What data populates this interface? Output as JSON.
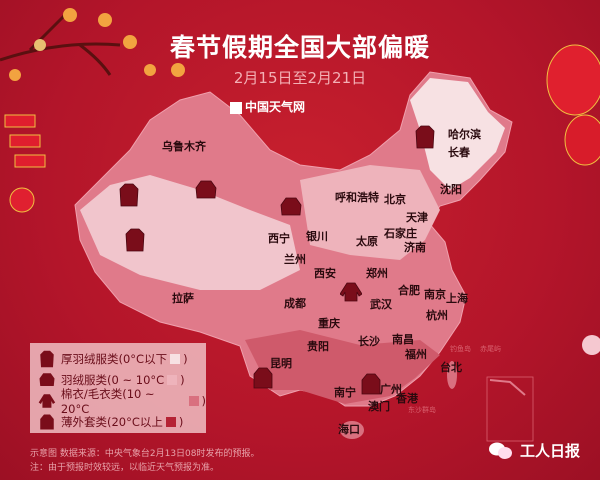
{
  "header": {
    "title": "春节假期全国大部偏暖",
    "subtitle": "2月15日至2月21日",
    "brand": "中国天气网",
    "brand_logo": "天气"
  },
  "colors": {
    "background": "#b3152a",
    "thick_down": "#f7e1e3",
    "down": "#eeb3bb",
    "cotton": "#d9707f",
    "light": "#b52234",
    "map_base": "#e07a8a"
  },
  "cities": [
    {
      "name": "乌鲁木齐"
    },
    {
      "name": "哈尔滨"
    },
    {
      "name": "长春"
    },
    {
      "name": "沈阳"
    },
    {
      "name": "呼和浩特"
    },
    {
      "name": "北京"
    },
    {
      "name": "天津"
    },
    {
      "name": "石家庄"
    },
    {
      "name": "济南"
    },
    {
      "name": "西宁"
    },
    {
      "name": "银川"
    },
    {
      "name": "太原"
    },
    {
      "name": "兰州"
    },
    {
      "name": "西安"
    },
    {
      "name": "郑州"
    },
    {
      "name": "合肥"
    },
    {
      "name": "南京"
    },
    {
      "name": "上海"
    },
    {
      "name": "武汉"
    },
    {
      "name": "杭州"
    },
    {
      "name": "拉萨"
    },
    {
      "name": "成都"
    },
    {
      "name": "重庆"
    },
    {
      "name": "贵阳"
    },
    {
      "name": "长沙"
    },
    {
      "name": "南昌"
    },
    {
      "name": "福州"
    },
    {
      "name": "昆明"
    },
    {
      "name": "南宁"
    },
    {
      "name": "广州"
    },
    {
      "name": "香港"
    },
    {
      "name": "澳门"
    },
    {
      "name": "海口"
    },
    {
      "name": "台北"
    }
  ],
  "islands": [
    "钓鱼岛",
    "赤尾屿",
    "东沙群岛"
  ],
  "legend": [
    {
      "label": "厚羽绒服类(0°C以下",
      "close": ")",
      "icon": "long-coat-icon",
      "color": "#f7e1e3"
    },
    {
      "label": "羽绒服类(0 ~ 10°C",
      "close": ")",
      "icon": "down-jacket-icon",
      "color": "#eeb3bb"
    },
    {
      "label": "棉衣/毛衣类(10 ~ 20°C",
      "close": ")",
      "icon": "sweater-icon",
      "color": "#d9707f"
    },
    {
      "label": "薄外套类(20°C以上",
      "close": ")",
      "icon": "light-jacket-icon",
      "color": "#b52234"
    }
  ],
  "notes": {
    "source": "示意图   数据来源：中央气象台2月13日08时发布的预报。",
    "disclaimer": "注：由于预报时效较远，以临近天气预报为准。"
  },
  "footer": {
    "account": "工人日报"
  }
}
